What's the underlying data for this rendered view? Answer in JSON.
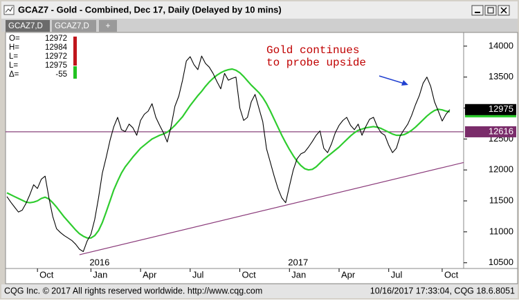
{
  "window": {
    "title": "GCAZ7 - Gold - Combined, Dec 17, Daily (Delayed by 10 mins)",
    "tabs": [
      "GCAZ7,D",
      "GCAZ7,D",
      "+"
    ],
    "footer_left": "CQG Inc. © 2017 All rights reserved worldwide. http://www.cqg.com",
    "footer_right": "10/16/2017 17:33:04, CQG 18.6.8051"
  },
  "quote_box": [
    {
      "label": "O=",
      "value": "12972"
    },
    {
      "label": "H=",
      "value": "12984"
    },
    {
      "label": "L=",
      "value": "12972"
    },
    {
      "label": "L=",
      "value": "12975"
    },
    {
      "label": "Δ=",
      "value": "-55"
    }
  ],
  "chart_data": {
    "type": "line",
    "annotation": [
      "Gold continues",
      "to probe upside"
    ],
    "categories": [
      null,
      null,
      null,
      null,
      null,
      null,
      null,
      null,
      "Oct",
      null,
      null,
      null,
      null,
      null,
      null,
      null,
      null,
      null,
      null,
      null,
      null,
      null,
      "Jan",
      null,
      null,
      null,
      null,
      null,
      null,
      null,
      null,
      null,
      null,
      null,
      null,
      "Apr",
      null,
      null,
      null,
      null,
      null,
      null,
      null,
      null,
      null,
      null,
      null,
      null,
      "Jul",
      null,
      null,
      null,
      null,
      null,
      null,
      null,
      null,
      null,
      null,
      null,
      null,
      "Oct",
      null,
      null,
      null,
      null,
      null,
      null,
      null,
      null,
      null,
      null,
      null,
      null,
      "Jan",
      null,
      null,
      null,
      null,
      null,
      null,
      null,
      null,
      null,
      null,
      null,
      null,
      "Apr",
      null,
      null,
      null,
      null,
      null,
      null,
      null,
      null,
      null,
      null,
      null,
      null,
      "Jul",
      null,
      null,
      null,
      null,
      null,
      null,
      null,
      null,
      null,
      null,
      null,
      null,
      null,
      "Oct",
      null,
      null
    ],
    "year_labels": [
      "2016",
      "2017"
    ],
    "series": [
      {
        "name": "GCAZ7",
        "color": "#000000",
        "values": [
          11570,
          11480,
          11400,
          11320,
          11350,
          11460,
          11600,
          11760,
          11700,
          11850,
          11900,
          11550,
          11250,
          11050,
          10990,
          10940,
          10900,
          10860,
          10800,
          10720,
          10680,
          10850,
          10960,
          11200,
          11550,
          11950,
          12200,
          12480,
          12700,
          12850,
          12650,
          12620,
          12740,
          12680,
          12560,
          12800,
          12900,
          12950,
          13070,
          12850,
          12720,
          12600,
          12450,
          12700,
          13030,
          13190,
          13450,
          13760,
          13830,
          13700,
          13620,
          13840,
          13720,
          13660,
          13560,
          13430,
          13310,
          13560,
          13450,
          13480,
          13500,
          13000,
          12800,
          12850,
          13100,
          13220,
          13000,
          12780,
          12340,
          12120,
          11900,
          11700,
          11550,
          11470,
          11740,
          12000,
          12180,
          12260,
          12290,
          12370,
          12460,
          12560,
          12630,
          12350,
          12280,
          12420,
          12600,
          12720,
          12800,
          12850,
          12720,
          12650,
          12740,
          12560,
          12700,
          12820,
          12850,
          12700,
          12600,
          12560,
          12400,
          12280,
          12350,
          12550,
          12650,
          12740,
          12880,
          13050,
          13200,
          13400,
          13500,
          13350,
          13100,
          12950,
          12790,
          12900,
          12975
        ]
      },
      {
        "name": "MA",
        "color": "#2ecc2e",
        "values": [
          11630,
          11600,
          11570,
          11540,
          11510,
          11480,
          11470,
          11480,
          11500,
          11540,
          11560,
          11530,
          11470,
          11400,
          11320,
          11240,
          11170,
          11100,
          11030,
          10970,
          10930,
          10900,
          10900,
          10940,
          11020,
          11150,
          11320,
          11500,
          11680,
          11820,
          11950,
          12050,
          12130,
          12210,
          12280,
          12350,
          12400,
          12450,
          12500,
          12530,
          12560,
          12580,
          12610,
          12660,
          12720,
          12790,
          12860,
          12950,
          13040,
          13120,
          13200,
          13270,
          13350,
          13420,
          13480,
          13530,
          13570,
          13600,
          13620,
          13630,
          13610,
          13570,
          13510,
          13440,
          13370,
          13310,
          13250,
          13170,
          13070,
          12950,
          12820,
          12690,
          12560,
          12440,
          12330,
          12230,
          12140,
          12070,
          12020,
          12000,
          12010,
          12050,
          12110,
          12170,
          12220,
          12270,
          12320,
          12370,
          12430,
          12490,
          12550,
          12600,
          12640,
          12660,
          12680,
          12690,
          12700,
          12690,
          12670,
          12640,
          12610,
          12580,
          12560,
          12560,
          12570,
          12600,
          12640,
          12690,
          12750,
          12810,
          12870,
          12920,
          12960,
          12980,
          12970,
          12950,
          12938
        ]
      }
    ],
    "hline": 12616,
    "hline_color": "#7a2c6a",
    "trendline": {
      "x": [
        19,
        116
      ],
      "values": [
        10630,
        12066
      ],
      "color": "#8a3a7a"
    },
    "ylim": [
      10430,
      14210
    ],
    "yticks": [
      10500,
      11000,
      11500,
      12000,
      12500,
      13000,
      13500,
      14000
    ]
  }
}
